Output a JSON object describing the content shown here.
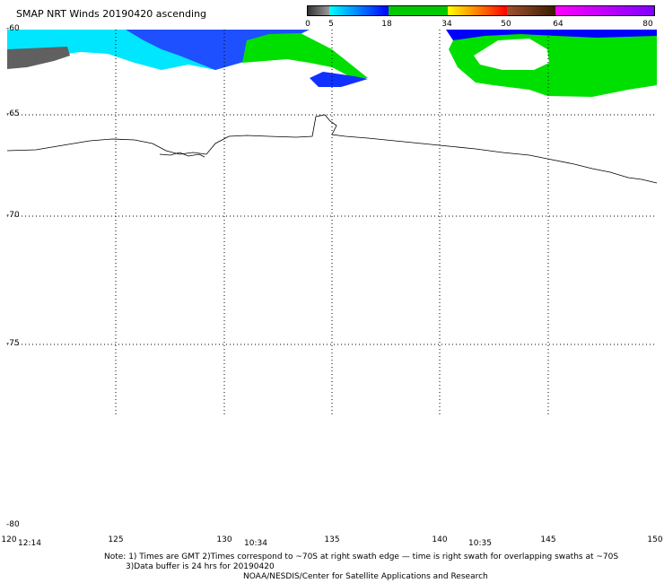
{
  "title": "SMAP NRT Winds 20190420 ascending",
  "legend": {
    "ticks": [
      "0",
      "5",
      "18",
      "34",
      "50",
      "64",
      "80"
    ],
    "colors": [
      "#555555",
      "#0000ff",
      "#00cc00",
      "#ffcc00",
      "#ff0000",
      "#8b4513",
      "#ff00ff"
    ]
  },
  "latitude_labels": [
    "-60",
    "-65",
    "-70",
    "-75",
    "-80"
  ],
  "longitude_labels": [
    "120",
    "125",
    "130",
    "135",
    "140",
    "145",
    "150"
  ],
  "swath_times": [
    "12:14",
    "10:34",
    "10:35"
  ],
  "notes": {
    "line1": "Note: 1) Times are GMT 2)Times correspond to ~70S at right swath edge — time is right swath for overlapping swaths at ~70S",
    "line2": "3)Data buffer is 24 hrs for 20190420",
    "line3": "NOAA/NESDIS/Center for Satellite Applications and Research"
  }
}
